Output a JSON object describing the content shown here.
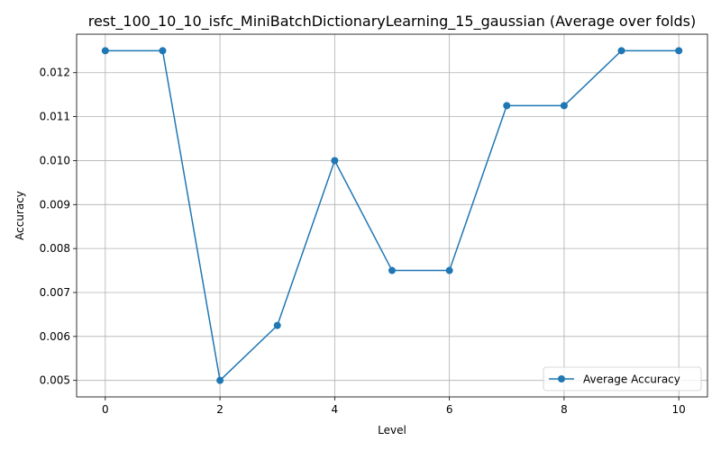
{
  "chart_data": {
    "type": "line",
    "title": "rest_100_10_10_isfc_MiniBatchDictionaryLearning_15_gaussian (Average over folds)",
    "xlabel": "Level",
    "ylabel": "Accuracy",
    "xlim": [
      -0.5,
      10.5
    ],
    "ylim": [
      0.004625,
      0.012875
    ],
    "xticks": [
      0,
      2,
      4,
      6,
      8,
      10
    ],
    "xtick_labels": [
      "0",
      "2",
      "4",
      "6",
      "8",
      "10"
    ],
    "yticks": [
      0.005,
      0.006,
      0.007,
      0.008,
      0.009,
      0.01,
      0.011,
      0.012
    ],
    "ytick_labels": [
      "0.005",
      "0.006",
      "0.007",
      "0.008",
      "0.009",
      "0.010",
      "0.011",
      "0.012"
    ],
    "grid": true,
    "legend_position": "bottom-right",
    "series": [
      {
        "name": "Average Accuracy",
        "color": "#1f77b4",
        "marker": "circle",
        "x": [
          0,
          1,
          2,
          3,
          4,
          5,
          6,
          7,
          8,
          9,
          10
        ],
        "y": [
          0.0125,
          0.0125,
          0.005,
          0.00625,
          0.01,
          0.0075,
          0.0075,
          0.01125,
          0.01125,
          0.0125,
          0.0125
        ]
      }
    ]
  }
}
